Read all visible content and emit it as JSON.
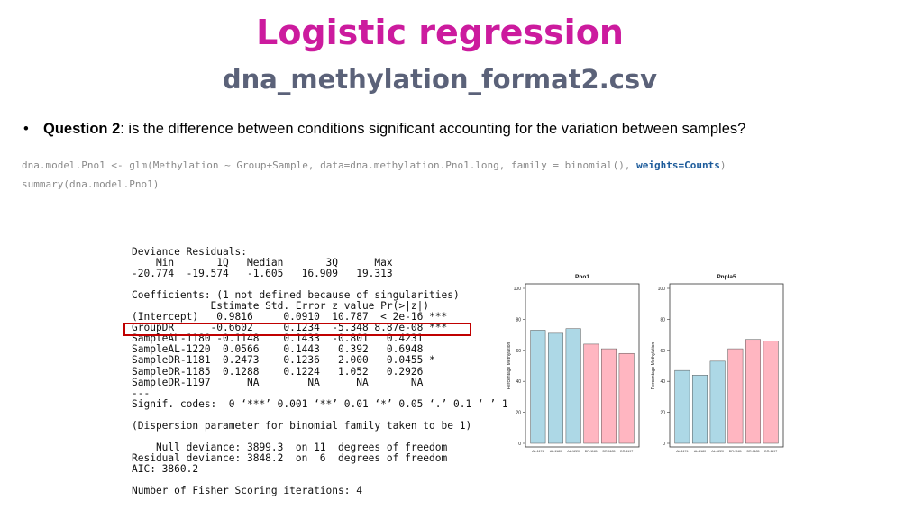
{
  "slide": {
    "title": "Logistic regression",
    "subtitle": "dna_methylation_format2.csv",
    "bullet_bold": "Question 2",
    "bullet_text": ": is the difference between conditions significant accounting for the variation between samples?",
    "code_line1_a": "dna.model.Pno1 <- glm(Methylation ~ Group+Sample, data=dna.methylation.Pno1.long, family = binomial(), ",
    "code_line1_b": "weights=Counts",
    "code_line1_c": ")",
    "code_line2": "summary(dna.model.Pno1)"
  },
  "r_output": [
    "Deviance Residuals:",
    "    Min       1Q   Median       3Q      Max",
    "-20.774  -19.574   -1.605   16.909   19.313",
    "",
    "Coefficients: (1 not defined because of singularities)",
    "             Estimate Std. Error z value Pr(>|z|)",
    "(Intercept)   0.9816     0.0910  10.787  < 2e-16 ***",
    "GroupDR      -0.6602     0.1234  -5.348 8.87e-08 ***",
    "SampleAL-1180 -0.1148    0.1433  -0.801   0.4231",
    "SampleAL-1220  0.0566    0.1443   0.392   0.6948",
    "SampleDR-1181  0.2473    0.1236   2.000   0.0455 *",
    "SampleDR-1185  0.1288    0.1224   1.052   0.2926",
    "SampleDR-1197      NA        NA      NA       NA",
    "---",
    "Signif. codes:  0 ‘***’ 0.001 ‘**’ 0.01 ‘*’ 0.05 ‘.’ 0.1 ‘ ’ 1",
    "",
    "(Dispersion parameter for binomial family taken to be 1)",
    "",
    "    Null deviance: 3899.3  on 11  degrees of freedom",
    "Residual deviance: 3848.2  on  6  degrees of freedom",
    "AIC: 3860.2",
    "",
    "Number of Fisher Scoring iterations: 4"
  ],
  "chart_data": [
    {
      "type": "bar",
      "title": "Pno1",
      "ylabel": "Percentage Methylation",
      "ylim": [
        0,
        100
      ],
      "yticks": [
        0,
        20,
        40,
        60,
        80,
        100
      ],
      "categories": [
        "AL-1174",
        "AL-1180",
        "AL-1220",
        "DR-1181",
        "DR-1185",
        "DR-1197"
      ],
      "values": [
        73,
        71,
        74,
        64,
        61,
        58
      ],
      "colors": [
        "#add8e6",
        "#add8e6",
        "#add8e6",
        "#ffb6c1",
        "#ffb6c1",
        "#ffb6c1"
      ]
    },
    {
      "type": "bar",
      "title": "Pnpla5",
      "ylabel": "Percentage Methylation",
      "ylim": [
        0,
        100
      ],
      "yticks": [
        0,
        20,
        40,
        60,
        80,
        100
      ],
      "categories": [
        "AL-1174",
        "AL-1180",
        "AL-1220",
        "DR-1181",
        "DR-1185",
        "DR-1197"
      ],
      "values": [
        47,
        44,
        53,
        61,
        67,
        66
      ],
      "colors": [
        "#add8e6",
        "#add8e6",
        "#add8e6",
        "#ffb6c1",
        "#ffb6c1",
        "#ffb6c1"
      ]
    }
  ]
}
